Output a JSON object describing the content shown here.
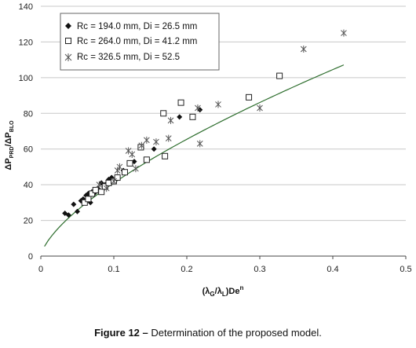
{
  "chart_data": {
    "type": "scatter",
    "title": "",
    "xlim": [
      0,
      0.5
    ],
    "ylim": [
      0,
      140
    ],
    "x_ticks": [
      0,
      0.1,
      0.2,
      0.3,
      0.4,
      0.5
    ],
    "x_tick_labels": [
      "0",
      "0.1",
      "0.2",
      "0.3",
      "0.4",
      "0.5"
    ],
    "y_ticks": [
      0,
      20,
      40,
      60,
      80,
      100,
      120,
      140
    ],
    "y_tick_labels": [
      "0",
      "20",
      "40",
      "60",
      "80",
      "100",
      "120",
      "140"
    ],
    "xlabel": {
      "main": "(λ",
      "sub1": "G",
      "mid": "/λ",
      "sub2": "L",
      "end": ")De",
      "sup": "n"
    },
    "ylabel": {
      "p1": "ΔP",
      "sub1": "PRD",
      "p2": "/ΔP",
      "sub2": "BLO"
    },
    "grid": "horizontal",
    "legend_position": "top-left",
    "series": [
      {
        "name": "Rc = 194.0 mm, Di = 26.5 mm",
        "marker": "diamond-filled",
        "color": "#111111",
        "points": [
          [
            0.033,
            24
          ],
          [
            0.038,
            23
          ],
          [
            0.045,
            29
          ],
          [
            0.05,
            25
          ],
          [
            0.055,
            31
          ],
          [
            0.058,
            32
          ],
          [
            0.062,
            34
          ],
          [
            0.065,
            35
          ],
          [
            0.068,
            30
          ],
          [
            0.07,
            36
          ],
          [
            0.073,
            35
          ],
          [
            0.078,
            38
          ],
          [
            0.083,
            41
          ],
          [
            0.088,
            40
          ],
          [
            0.093,
            43
          ],
          [
            0.097,
            44
          ],
          [
            0.1,
            42
          ],
          [
            0.103,
            43
          ],
          [
            0.113,
            48
          ],
          [
            0.115,
            47
          ],
          [
            0.128,
            53
          ],
          [
            0.155,
            60
          ],
          [
            0.19,
            78
          ],
          [
            0.218,
            82
          ]
        ]
      },
      {
        "name": "Rc = 264.0 mm, Di = 41.2 mm",
        "marker": "square-open",
        "color": "#222222",
        "points": [
          [
            0.06,
            30
          ],
          [
            0.065,
            32
          ],
          [
            0.07,
            35
          ],
          [
            0.075,
            37
          ],
          [
            0.083,
            36
          ],
          [
            0.088,
            39
          ],
          [
            0.093,
            41
          ],
          [
            0.1,
            42
          ],
          [
            0.105,
            44
          ],
          [
            0.115,
            47
          ],
          [
            0.122,
            52
          ],
          [
            0.137,
            61
          ],
          [
            0.145,
            54
          ],
          [
            0.168,
            80
          ],
          [
            0.17,
            56
          ],
          [
            0.192,
            86
          ],
          [
            0.208,
            78
          ],
          [
            0.285,
            89
          ],
          [
            0.327,
            101
          ]
        ]
      },
      {
        "name": "Rc = 326.5 mm, Di = 52.5",
        "marker": "asterisk",
        "color": "#555555",
        "points": [
          [
            0.08,
            40
          ],
          [
            0.09,
            38
          ],
          [
            0.1,
            42
          ],
          [
            0.105,
            48
          ],
          [
            0.108,
            50
          ],
          [
            0.12,
            59
          ],
          [
            0.125,
            57
          ],
          [
            0.13,
            49
          ],
          [
            0.138,
            62
          ],
          [
            0.145,
            65
          ],
          [
            0.158,
            64
          ],
          [
            0.175,
            66
          ],
          [
            0.178,
            76
          ],
          [
            0.215,
            83
          ],
          [
            0.218,
            63
          ],
          [
            0.243,
            85
          ],
          [
            0.3,
            83
          ],
          [
            0.36,
            116
          ],
          [
            0.415,
            125
          ]
        ]
      }
    ],
    "fit_curve": {
      "form": "power",
      "a": 194,
      "b": 0.675,
      "x_range": [
        0.005,
        0.415
      ],
      "color": "#2e6e2e"
    }
  },
  "caption": {
    "label": "Figure 12 –",
    "text": " Determination of the proposed model."
  }
}
